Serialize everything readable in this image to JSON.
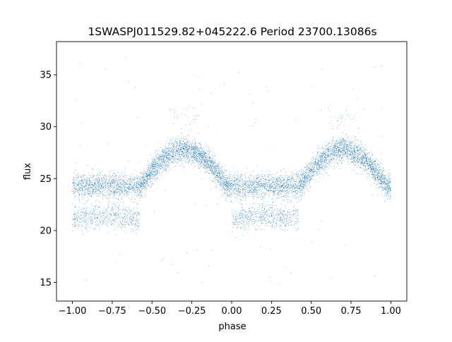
{
  "chart_data": {
    "type": "scatter",
    "title": "1SWASPJ011529.82+045222.6 Period 23700.13086s",
    "xlabel": "phase",
    "ylabel": "flux",
    "xlim": [
      -1.1,
      1.1
    ],
    "ylim": [
      13.2,
      38.2
    ],
    "x_ticks": [
      -1.0,
      -0.75,
      -0.5,
      -0.25,
      0.0,
      0.25,
      0.5,
      0.75,
      1.0
    ],
    "x_tick_labels": [
      "−1.00",
      "−0.75",
      "−0.50",
      "−0.25",
      "0.00",
      "0.25",
      "0.50",
      "0.75",
      "1.00"
    ],
    "y_ticks": [
      15,
      20,
      25,
      30,
      35
    ],
    "y_tick_labels": [
      "15",
      "20",
      "25",
      "30",
      "35"
    ],
    "grid": false,
    "series": [
      {
        "color": "#1f77b4",
        "marker": "point",
        "phase_range": [
          -1.0,
          1.0
        ],
        "points_per_cycle": 4200,
        "baseline_flux": 24.3,
        "peak_flux": 27.8,
        "peak_phase": 0.7,
        "lower_branch_flux": 21.0,
        "lower_branch_phase_range": [
          0.05,
          0.35
        ],
        "scatter": 0.6,
        "outlier_flux_range": [
          14.5,
          37.0
        ]
      }
    ]
  }
}
